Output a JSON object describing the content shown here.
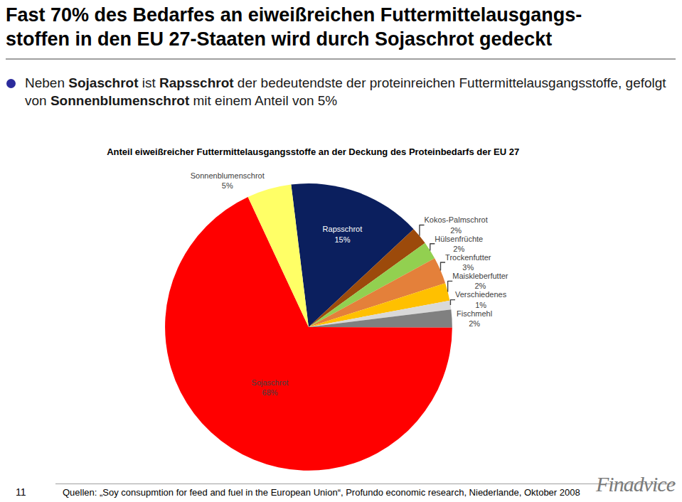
{
  "slide": {
    "title_lines": [
      "Fast 70% des Bedarfes an eiweißreichen Futtermittelausgangs-",
      "stoffen in den EU 27-Staaten wird durch Sojaschrot gedeckt"
    ],
    "bullet": [
      {
        "text": "Neben "
      },
      {
        "text": "Sojaschrot",
        "bold": true
      },
      {
        "text": " ist "
      },
      {
        "text": "Rapsschrot",
        "bold": true
      },
      {
        "text": " der bedeutendste der proteinreichen Futtermittelausgangsstoffe, gefolgt von "
      },
      {
        "text": "Sonnenblumenschrot",
        "bold": true
      },
      {
        "text": " mit einem Anteil von 5%"
      }
    ],
    "page_number": 11,
    "source": "Quellen: „Soy consupmtion for feed and fuel in the European Union“, Profundo economic research, Niederlande, Oktober 2008",
    "logo": "Finadvice"
  },
  "chart_data": {
    "type": "pie",
    "title": "Anteil eiweißreicher Futtermittelausgangsstoffe an der Deckung des Proteinbedarfs der EU 27",
    "categories": [
      "Rapsschrot",
      "Kokos-Palmschrot",
      "Hülsenfrüchte",
      "Trockenfutter",
      "Maiskleberfutter",
      "Verschiedenes",
      "Fischmehl",
      "Sojaschrot",
      "Sonnenblumenschrot"
    ],
    "values": [
      15,
      2,
      2,
      3,
      2,
      1,
      2,
      68,
      5
    ],
    "value_labels": [
      "15%",
      "2%",
      "2%",
      "3%",
      "2%",
      "1%",
      "2%",
      "68%",
      "5%"
    ],
    "colors": [
      "#0b1f5e",
      "#9c4a0b",
      "#92d050",
      "#e4803a",
      "#ffc000",
      "#d9d9d9",
      "#808080",
      "#ff0000",
      "#ffff66"
    ],
    "data_labels": true
  }
}
